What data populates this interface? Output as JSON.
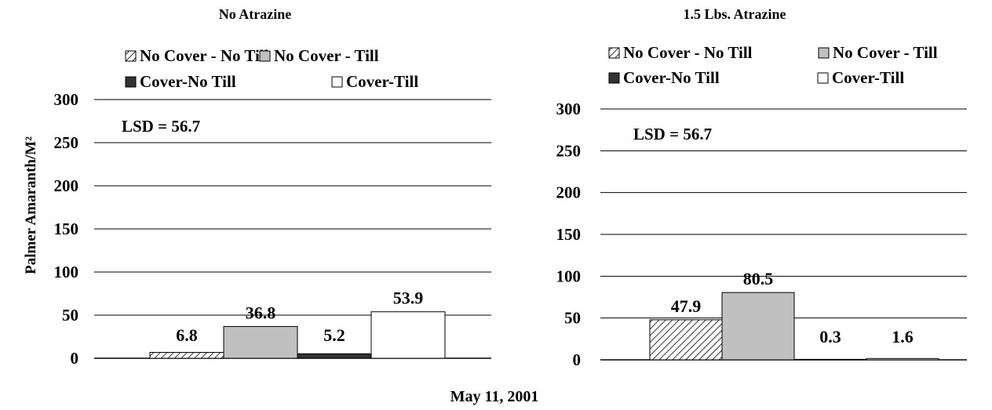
{
  "chart_data": [
    {
      "type": "bar",
      "title": "No Atrazine",
      "ylabel": "Palmer Amaranth/M²",
      "ylim": [
        0,
        300
      ],
      "yticks": [
        0,
        50,
        100,
        150,
        200,
        250,
        300
      ],
      "grid": true,
      "legend_placement": "top",
      "annotation": "LSD = 56.7",
      "series": [
        {
          "name": "No Cover - No Till",
          "value": 6.8,
          "fill": "hatched",
          "color": "#ffffff"
        },
        {
          "name": "No Cover - Till",
          "value": 36.8,
          "fill": "solid",
          "color": "#c0c0c0"
        },
        {
          "name": "Cover-No Till",
          "value": 5.2,
          "fill": "solid",
          "color": "#333333"
        },
        {
          "name": "Cover-Till",
          "value": 53.9,
          "fill": "solid",
          "color": "#ffffff"
        }
      ],
      "data_labels": [
        "6.8",
        "36.8",
        "5.2",
        "53.9"
      ]
    },
    {
      "type": "bar",
      "title": "1.5 Lbs. Atrazine",
      "ylabel": "",
      "ylim": [
        0,
        300
      ],
      "yticks": [
        0,
        50,
        100,
        150,
        200,
        250,
        300
      ],
      "grid": true,
      "legend_placement": "top",
      "annotation": "LSD = 56.7",
      "series": [
        {
          "name": "No Cover - No Till",
          "value": 47.9,
          "fill": "hatched",
          "color": "#ffffff"
        },
        {
          "name": "No Cover - Till",
          "value": 80.5,
          "fill": "solid",
          "color": "#c0c0c0"
        },
        {
          "name": "Cover-No Till",
          "value": 0.3,
          "fill": "solid",
          "color": "#333333"
        },
        {
          "name": "Cover-Till",
          "value": 1.6,
          "fill": "solid",
          "color": "#ffffff"
        }
      ],
      "data_labels": [
        "47.9",
        "80.5",
        "0.3",
        "1.6"
      ]
    }
  ],
  "footer": {
    "date": "May 11, 2001"
  }
}
